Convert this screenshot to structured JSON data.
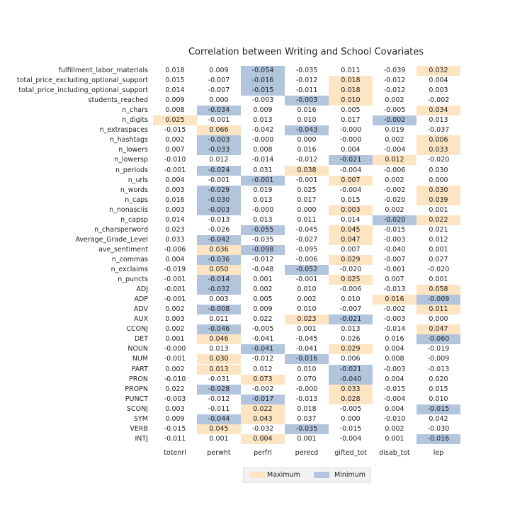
{
  "chart_data": {
    "type": "table",
    "title": "Correlation between Writing and School Covariates",
    "columns": [
      "totenrl",
      "perwht",
      "perfrl",
      "perecd",
      "gifted_tot",
      "disab_tot",
      "lep"
    ],
    "rows": [
      {
        "label": "fulfillment_labor_materials",
        "values": [
          "0.018",
          "0.009",
          "-0.054",
          "-0.035",
          "0.011",
          "-0.039",
          "0.032"
        ],
        "max_col": 6,
        "min_col": 2
      },
      {
        "label": "total_price_excluding_optional_support",
        "values": [
          "0.015",
          "-0.007",
          "-0.016",
          "-0.012",
          "0.018",
          "-0.012",
          "0.004"
        ],
        "max_col": 4,
        "min_col": 2
      },
      {
        "label": "total_price_including_optional_support",
        "values": [
          "0.014",
          "-0.007",
          "-0.015",
          "-0.011",
          "0.018",
          "-0.012",
          "0.003"
        ],
        "max_col": 4,
        "min_col": 2
      },
      {
        "label": "students_reached",
        "values": [
          "0.009",
          "0.000",
          "-0.003",
          "-0.003",
          "0.010",
          "0.002",
          "-0.002"
        ],
        "max_col": 4,
        "min_col": 3
      },
      {
        "label": "n_chars",
        "values": [
          "0.008",
          "-0.034",
          "0.009",
          "0.016",
          "0.005",
          "-0.005",
          "0.034"
        ],
        "max_col": 6,
        "min_col": 1
      },
      {
        "label": "n_digits",
        "values": [
          "0.025",
          "-0.001",
          "0.013",
          "0.010",
          "0.017",
          "-0.002",
          "0.013"
        ],
        "max_col": 0,
        "min_col": 5
      },
      {
        "label": "n_extraspaces",
        "values": [
          "-0.015",
          "0.066",
          "-0.042",
          "-0.043",
          "-0.000",
          "0.019",
          "-0.037"
        ],
        "max_col": 1,
        "min_col": 3
      },
      {
        "label": "n_hashtags",
        "values": [
          "0.002",
          "-0.003",
          "-0.000",
          "0.000",
          "-0.000",
          "0.002",
          "0.006"
        ],
        "max_col": 6,
        "min_col": 1
      },
      {
        "label": "n_lowers",
        "values": [
          "0.007",
          "-0.033",
          "0.008",
          "0.016",
          "0.004",
          "-0.004",
          "0.033"
        ],
        "max_col": 6,
        "min_col": 1
      },
      {
        "label": "n_lowersp",
        "values": [
          "-0.010",
          "0.012",
          "-0.014",
          "-0.012",
          "-0.021",
          "0.012",
          "-0.020"
        ],
        "max_col": 5,
        "min_col": 4
      },
      {
        "label": "n_periods",
        "values": [
          "-0.001",
          "-0.024",
          "0.031",
          "0.038",
          "-0.004",
          "-0.006",
          "0.030"
        ],
        "max_col": 3,
        "min_col": 1
      },
      {
        "label": "n_urls",
        "values": [
          "0.004",
          "-0.001",
          "-0.001",
          "-0.001",
          "0.007",
          "0.002",
          "0.000"
        ],
        "max_col": 4,
        "min_col": 2
      },
      {
        "label": "n_words",
        "values": [
          "0.003",
          "-0.029",
          "0.019",
          "0.025",
          "-0.004",
          "-0.002",
          "0.030"
        ],
        "max_col": 6,
        "min_col": 1
      },
      {
        "label": "n_caps",
        "values": [
          "0.016",
          "-0.030",
          "0.013",
          "0.017",
          "0.015",
          "-0.020",
          "0.039"
        ],
        "max_col": 6,
        "min_col": 1
      },
      {
        "label": "n_nonasciis",
        "values": [
          "0.003",
          "-0.003",
          "-0.000",
          "0.000",
          "0.003",
          "0.002",
          "0.001"
        ],
        "max_col": 4,
        "min_col": 1
      },
      {
        "label": "n_capsp",
        "values": [
          "0.014",
          "-0.013",
          "0.013",
          "0.011",
          "0.014",
          "-0.020",
          "0.022"
        ],
        "max_col": 6,
        "min_col": 5
      },
      {
        "label": "n_charsperword",
        "values": [
          "0.023",
          "-0.026",
          "-0.055",
          "-0.045",
          "0.045",
          "-0.015",
          "0.021"
        ],
        "max_col": 4,
        "min_col": 2
      },
      {
        "label": "Average_Grade_Level",
        "values": [
          "0.033",
          "-0.042",
          "-0.035",
          "-0.027",
          "0.047",
          "-0.003",
          "0.012"
        ],
        "max_col": 4,
        "min_col": 1
      },
      {
        "label": "ave_sentiment",
        "values": [
          "-0.006",
          "0.036",
          "-0.098",
          "-0.095",
          "0.007",
          "-0.040",
          "0.001"
        ],
        "max_col": 1,
        "min_col": 2
      },
      {
        "label": "n_commas",
        "values": [
          "0.004",
          "-0.036",
          "-0.012",
          "-0.006",
          "0.029",
          "-0.007",
          "0.027"
        ],
        "max_col": 4,
        "min_col": 1
      },
      {
        "label": "n_exclaims",
        "values": [
          "-0.019",
          "0.050",
          "-0.048",
          "-0.052",
          "-0.020",
          "-0.001",
          "-0.020"
        ],
        "max_col": 1,
        "min_col": 3
      },
      {
        "label": "n_puncts",
        "values": [
          "-0.001",
          "-0.014",
          "0.001",
          "-0.001",
          "0.025",
          "0.007",
          "0.001"
        ],
        "max_col": 4,
        "min_col": 1
      },
      {
        "label": "ADJ",
        "values": [
          "-0.001",
          "-0.032",
          "0.002",
          "0.010",
          "-0.006",
          "-0.013",
          "0.058"
        ],
        "max_col": 6,
        "min_col": 1
      },
      {
        "label": "ADP",
        "values": [
          "-0.001",
          "0.003",
          "0.005",
          "0.002",
          "0.010",
          "0.016",
          "-0.009"
        ],
        "max_col": 5,
        "min_col": 6
      },
      {
        "label": "ADV",
        "values": [
          "0.002",
          "-0.008",
          "0.009",
          "0.010",
          "-0.007",
          "-0.002",
          "0.011"
        ],
        "max_col": 6,
        "min_col": 1
      },
      {
        "label": "AUX",
        "values": [
          "0.003",
          "0.011",
          "0.022",
          "0.023",
          "-0.021",
          "-0.003",
          "0.000"
        ],
        "max_col": 3,
        "min_col": 4
      },
      {
        "label": "CCONJ",
        "values": [
          "0.002",
          "-0.046",
          "-0.005",
          "0.001",
          "0.013",
          "-0.014",
          "0.047"
        ],
        "max_col": 6,
        "min_col": 1
      },
      {
        "label": "DET",
        "values": [
          "0.001",
          "0.046",
          "-0.041",
          "-0.045",
          "0.026",
          "0.016",
          "-0.060"
        ],
        "max_col": 1,
        "min_col": 6
      },
      {
        "label": "NOUN",
        "values": [
          "-0.000",
          "0.013",
          "-0.041",
          "-0.041",
          "0.029",
          "0.004",
          "-0.019"
        ],
        "max_col": 4,
        "min_col": 2
      },
      {
        "label": "NUM",
        "values": [
          "-0.001",
          "0.030",
          "-0.012",
          "-0.016",
          "0.006",
          "0.008",
          "-0.009"
        ],
        "max_col": 1,
        "min_col": 3
      },
      {
        "label": "PART",
        "values": [
          "0.002",
          "0.013",
          "0.012",
          "0.010",
          "-0.021",
          "-0.003",
          "-0.013"
        ],
        "max_col": 1,
        "min_col": 4
      },
      {
        "label": "PRON",
        "values": [
          "-0.010",
          "-0.031",
          "0.073",
          "0.070",
          "-0.040",
          "0.004",
          "0.020"
        ],
        "max_col": 2,
        "min_col": 4
      },
      {
        "label": "PROPN",
        "values": [
          "0.022",
          "-0.028",
          "-0.002",
          "-0.000",
          "0.033",
          "-0.015",
          "0.015"
        ],
        "max_col": 4,
        "min_col": 1
      },
      {
        "label": "PUNCT",
        "values": [
          "-0.003",
          "-0.012",
          "-0.017",
          "-0.013",
          "0.028",
          "-0.004",
          "0.010"
        ],
        "max_col": 4,
        "min_col": 2
      },
      {
        "label": "SCONJ",
        "values": [
          "0.003",
          "-0.011",
          "0.022",
          "0.018",
          "-0.005",
          "0.004",
          "-0.015"
        ],
        "max_col": 2,
        "min_col": 6
      },
      {
        "label": "SYM",
        "values": [
          "0.009",
          "-0.044",
          "0.043",
          "0.037",
          "0.000",
          "-0.010",
          "0.042"
        ],
        "max_col": 2,
        "min_col": 1
      },
      {
        "label": "VERB",
        "values": [
          "-0.015",
          "0.045",
          "-0.032",
          "-0.035",
          "-0.015",
          "0.002",
          "-0.030"
        ],
        "max_col": 1,
        "min_col": 3
      },
      {
        "label": "INTJ",
        "values": [
          "-0.011",
          "0.001",
          "0.004",
          "0.001",
          "-0.004",
          "0.001",
          "-0.016"
        ],
        "max_col": 2,
        "min_col": 6
      }
    ],
    "legend": [
      {
        "label": "Maximum",
        "color": "#fde5c4"
      },
      {
        "label": "Minimum",
        "color": "#b3c5dd"
      }
    ],
    "legend_position": "bottom-center"
  }
}
